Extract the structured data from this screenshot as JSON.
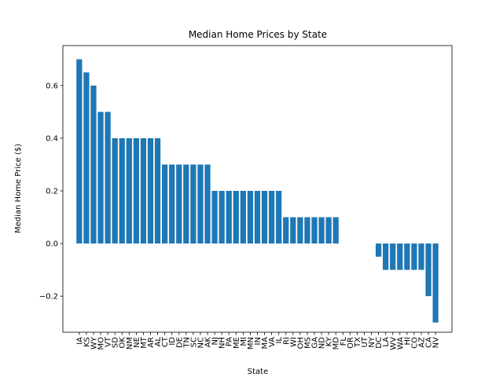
{
  "chart_data": {
    "type": "bar",
    "title": "Median Home Prices by State",
    "xlabel": "State",
    "ylabel": "Median Home Price ($)",
    "color": "#1f77b4",
    "categories": [
      "IA",
      "KS",
      "WY",
      "MO",
      "VT",
      "SD",
      "OK",
      "NM",
      "NE",
      "MT",
      "AR",
      "AL",
      "CT",
      "ID",
      "DE",
      "TN",
      "SC",
      "NC",
      "AK",
      "NJ",
      "NH",
      "PA",
      "ME",
      "MI",
      "MN",
      "IN",
      "MA",
      "VA",
      "IL",
      "RI",
      "WI",
      "OH",
      "MS",
      "GA",
      "ND",
      "KY",
      "MD",
      "FL",
      "OR",
      "TX",
      "UT",
      "NY",
      "DC",
      "LA",
      "WV",
      "WA",
      "HI",
      "CO",
      "AZ",
      "CA",
      "NV"
    ],
    "values": [
      0.7,
      0.65,
      0.6,
      0.5,
      0.5,
      0.4,
      0.4,
      0.4,
      0.4,
      0.4,
      0.4,
      0.4,
      0.3,
      0.3,
      0.3,
      0.3,
      0.3,
      0.3,
      0.3,
      0.2,
      0.2,
      0.2,
      0.2,
      0.2,
      0.2,
      0.2,
      0.2,
      0.2,
      0.2,
      0.1,
      0.1,
      0.1,
      0.1,
      0.1,
      0.1,
      0.1,
      0.1,
      0,
      0,
      0,
      0,
      0,
      -0.05,
      -0.1,
      -0.1,
      -0.1,
      -0.1,
      -0.1,
      -0.1,
      -0.2,
      -0.3
    ],
    "ylim": [
      -0.337,
      0.752
    ],
    "yticks": [
      {
        "value": -0.2,
        "label": "−0.2"
      },
      {
        "value": 0,
        "label": "0.0"
      },
      0.2,
      0.4,
      0.6
    ]
  }
}
